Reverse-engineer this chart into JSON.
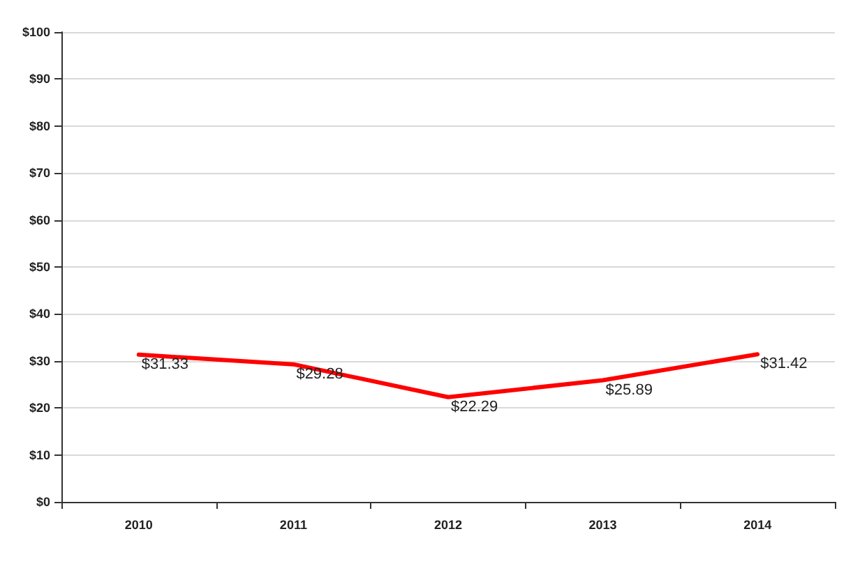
{
  "chart_data": {
    "type": "line",
    "categories": [
      "2010",
      "2011",
      "2012",
      "2013",
      "2014"
    ],
    "series": [
      {
        "color": "#ff0000",
        "values": [
          31.33,
          29.28,
          22.29,
          25.89,
          31.42
        ],
        "value_labels": [
          "$31.33",
          "$29.28",
          "$22.29",
          "$25.89",
          "$31.42"
        ]
      }
    ],
    "ylim": [
      0,
      100
    ],
    "yticks": [
      {
        "value": 0,
        "label": "$0"
      },
      {
        "value": 10,
        "label": "$10"
      },
      {
        "value": 20,
        "label": "$20"
      },
      {
        "value": 30,
        "label": "$30"
      },
      {
        "value": 40,
        "label": "$40"
      },
      {
        "value": 50,
        "label": "$50"
      },
      {
        "value": 60,
        "label": "$60"
      },
      {
        "value": 70,
        "label": "$70"
      },
      {
        "value": 80,
        "label": "$80"
      },
      {
        "value": 90,
        "label": "$90"
      },
      {
        "value": 100,
        "label": "$100"
      }
    ],
    "grid": "y",
    "marker": "none",
    "line_style": "solid"
  }
}
